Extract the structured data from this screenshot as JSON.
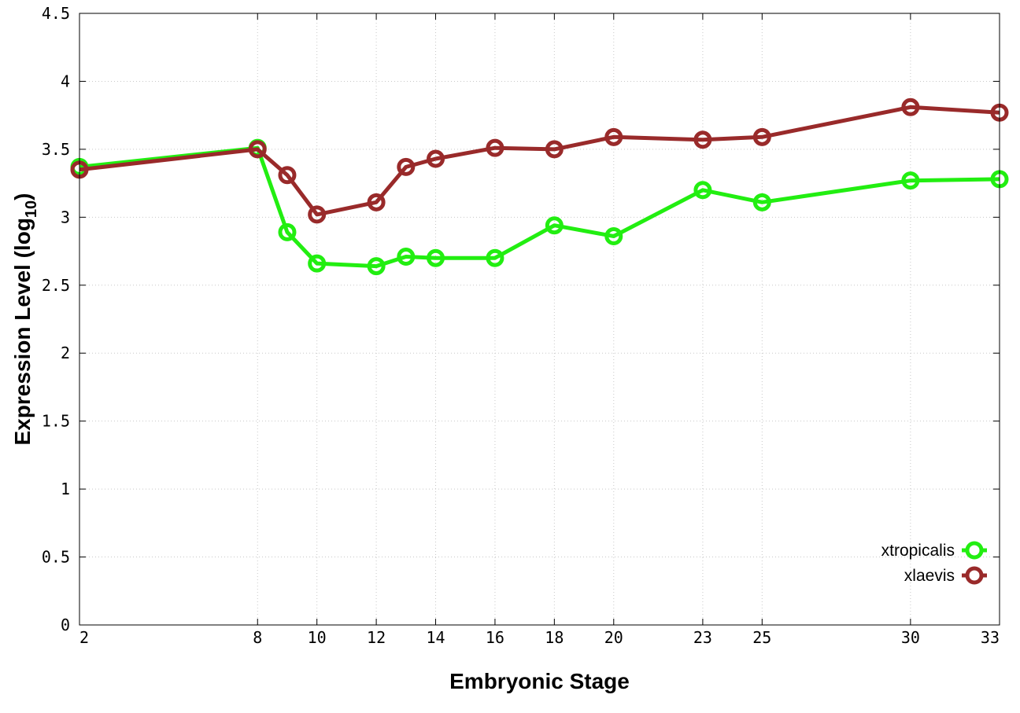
{
  "chart_data": {
    "type": "line",
    "xlabel": "Embryonic Stage",
    "ylabel_main": "Expression Level (log",
    "ylabel_sub": "10",
    "ylabel_close": ")",
    "x_ticks": [
      2,
      8,
      10,
      12,
      14,
      16,
      18,
      20,
      23,
      25,
      30,
      33
    ],
    "y_ticks": [
      "0",
      "0.5",
      "1",
      "1.5",
      "2",
      "2.5",
      "3",
      "3.5",
      "4",
      "4.5"
    ],
    "xlim": [
      2,
      33
    ],
    "ylim": [
      0,
      4.5
    ],
    "grid": true,
    "legend_position": "bottom-right",
    "series": [
      {
        "name": "xtropicalis",
        "color": "#22ee11",
        "x": [
          2,
          8,
          9,
          10,
          12,
          13,
          14,
          16,
          18,
          20,
          23,
          25,
          30,
          33
        ],
        "y": [
          3.37,
          3.51,
          2.89,
          2.66,
          2.64,
          2.71,
          2.7,
          2.7,
          2.94,
          2.86,
          3.2,
          3.11,
          3.27,
          3.28
        ]
      },
      {
        "name": "xlaevis",
        "color": "#992a2a",
        "x": [
          2,
          8,
          9,
          10,
          12,
          13,
          14,
          16,
          18,
          20,
          23,
          25,
          30,
          33
        ],
        "y": [
          3.35,
          3.5,
          3.31,
          3.02,
          3.11,
          3.37,
          3.43,
          3.51,
          3.5,
          3.59,
          3.57,
          3.59,
          3.81,
          3.77
        ]
      }
    ]
  }
}
